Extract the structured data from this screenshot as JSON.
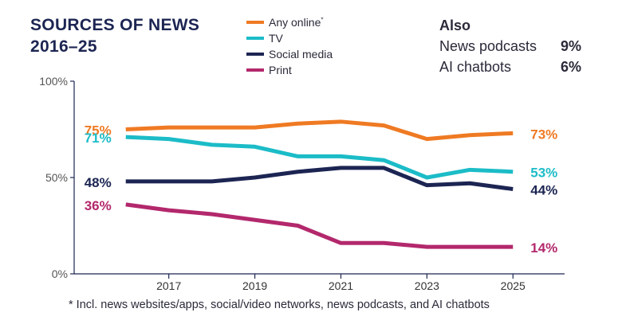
{
  "title_line1": "SOURCES OF NEWS",
  "title_line2": "2016–25",
  "also": {
    "heading": "Also",
    "items": [
      {
        "label": "News podcasts",
        "value": "9%"
      },
      {
        "label": "AI chatbots",
        "value": "6%"
      }
    ]
  },
  "footnote": "* Incl. news websites/apps, social/video networks, news podcasts, and AI chatbots",
  "chart_data": {
    "type": "line",
    "x": [
      2016,
      2017,
      2018,
      2019,
      2020,
      2021,
      2022,
      2023,
      2024,
      2025
    ],
    "xticks": [
      2017,
      2019,
      2021,
      2023,
      2025
    ],
    "yticks": [
      {
        "value": 0,
        "label": "0%"
      },
      {
        "value": 50,
        "label": "50%"
      },
      {
        "value": 100,
        "label": "100%"
      }
    ],
    "ylim": [
      0,
      100
    ],
    "series": [
      {
        "name": "Any online*",
        "legend_label": "Any online",
        "legend_sup": "*",
        "color": "#ef7a23",
        "values": [
          75,
          76,
          76,
          76,
          78,
          79,
          77,
          70,
          72,
          73
        ],
        "start_label": "75%",
        "end_label": "73%"
      },
      {
        "name": "TV",
        "legend_label": "TV",
        "legend_sup": "",
        "color": "#1bbcc7",
        "values": [
          71,
          70,
          67,
          66,
          61,
          61,
          59,
          50,
          54,
          53
        ],
        "start_label": "71%",
        "end_label": "53%"
      },
      {
        "name": "Social media",
        "legend_label": "Social media",
        "legend_sup": "",
        "color": "#1c2552",
        "values": [
          48,
          48,
          48,
          50,
          53,
          55,
          55,
          46,
          47,
          44
        ],
        "start_label": "48%",
        "end_label": "44%"
      },
      {
        "name": "Print",
        "legend_label": "Print",
        "legend_sup": "",
        "color": "#b3286c",
        "values": [
          36,
          33,
          31,
          28,
          25,
          16,
          16,
          14,
          14,
          14
        ],
        "start_label": "36%",
        "end_label": "14%"
      }
    ],
    "axis_color": "#1c2552"
  }
}
